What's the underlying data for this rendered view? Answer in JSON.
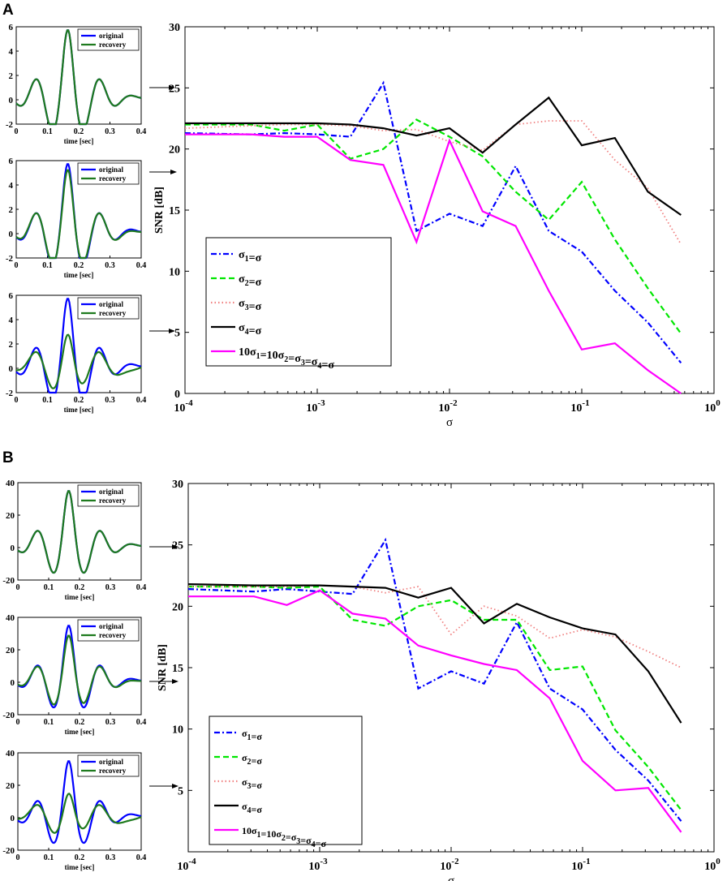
{
  "panels": [
    {
      "label": "A",
      "main": {
        "type": "line",
        "ylabel": "SNR [dB]",
        "xlabel": "σ",
        "ylim": [
          0,
          30
        ],
        "yticks": [
          0,
          5,
          10,
          15,
          20,
          25,
          30
        ],
        "xscale": "log",
        "xlim_exp": [
          -4,
          0
        ],
        "xtick_exps": [
          -4,
          -3,
          -2,
          -1,
          0
        ],
        "legend_loc": "lower-left",
        "x_exp": [
          -4.0,
          -3.5,
          -3.25,
          -3.0,
          -2.75,
          -2.5,
          -2.25,
          -2.0,
          -1.75,
          -1.5,
          -1.25,
          -1.0,
          -0.75,
          -0.5,
          -0.25
        ],
        "series": [
          {
            "name": "σ1=σ",
            "style": "dashdot",
            "color": "#0000ff",
            "values": [
              21.3,
              21.2,
              21.3,
              21.2,
              21.0,
              25.4,
              13.3,
              14.7,
              13.7,
              18.6,
              13.3,
              11.6,
              8.4,
              5.8,
              2.5
            ]
          },
          {
            "name": "σ2=σ",
            "style": "dashed",
            "color": "#00e600",
            "values": [
              22.0,
              22.0,
              21.5,
              22.0,
              19.2,
              20.0,
              22.4,
              21.0,
              19.4,
              16.5,
              14.2,
              17.3,
              12.6,
              8.6,
              4.9
            ]
          },
          {
            "name": "σ3=σ",
            "style": "dotted",
            "color": "#f08080",
            "values": [
              21.7,
              21.9,
              22.0,
              22.0,
              21.9,
              21.5,
              21.6,
              20.6,
              19.9,
              22.0,
              22.3,
              22.3,
              19.1,
              16.8,
              12.2
            ]
          },
          {
            "name": "σ4=σ",
            "style": "solid",
            "color": "#000000",
            "values": [
              22.1,
              22.1,
              22.1,
              22.1,
              22.0,
              21.7,
              21.1,
              21.7,
              19.7,
              22.0,
              24.2,
              20.3,
              20.9,
              16.5,
              14.6
            ]
          },
          {
            "name": "10σ1=10σ2=σ3=σ4=σ",
            "style": "solid",
            "color": "#ff00ff",
            "values": [
              21.2,
              21.2,
              21.0,
              21.0,
              19.1,
              18.7,
              12.4,
              20.7,
              14.9,
              13.7,
              8.4,
              3.6,
              4.1,
              1.9,
              0.0
            ]
          }
        ]
      },
      "insets": [
        {
          "ylim": [
            -2,
            6
          ],
          "yticks": [
            -2,
            0,
            2,
            4,
            6
          ],
          "xlim": [
            0,
            0.4
          ],
          "xticks": [
            "0",
            "0.1",
            "0.2",
            "0.3",
            "0.4"
          ],
          "xlabel": "time [sec]",
          "legend": [
            "original",
            "recovery"
          ],
          "original": {
            "base": 0.3,
            "amp": 5.6
          },
          "recovery": {
            "scale": 1.0,
            "noise": 0.0
          }
        },
        {
          "ylim": [
            -2,
            6
          ],
          "yticks": [
            -2,
            0,
            2,
            4,
            6
          ],
          "xlim": [
            0,
            0.4
          ],
          "xticks": [
            "0",
            "0.1",
            "0.2",
            "0.3",
            "0.4"
          ],
          "xlabel": "time [sec]",
          "legend": [
            "original",
            "recovery"
          ],
          "original": {
            "base": 0.3,
            "amp": 5.6
          },
          "recovery": {
            "scale": 0.93,
            "noise": 0.12
          }
        },
        {
          "ylim": [
            -2,
            6
          ],
          "yticks": [
            -2,
            0,
            2,
            4,
            6
          ],
          "xlim": [
            0,
            0.4
          ],
          "xticks": [
            "0",
            "0.1",
            "0.2",
            "0.3",
            "0.4"
          ],
          "xlabel": "time [sec]",
          "legend": [
            "original",
            "recovery"
          ],
          "original": {
            "base": 0.3,
            "amp": 5.6
          },
          "recovery": {
            "scale": 0.55,
            "noise": 0.45
          }
        }
      ]
    },
    {
      "label": "B",
      "main": {
        "type": "line",
        "ylabel": "SNR [dB]",
        "xlabel": "σ",
        "ylim": [
          0,
          30
        ],
        "yticks": [
          5,
          10,
          15,
          20,
          25,
          30
        ],
        "xscale": "log",
        "xlim_exp": [
          -4,
          0
        ],
        "xtick_exps": [
          -4,
          -3,
          -2,
          -1,
          0
        ],
        "legend_loc": "lower-left",
        "x_exp": [
          -4.0,
          -3.5,
          -3.25,
          -3.0,
          -2.75,
          -2.5,
          -2.25,
          -2.0,
          -1.75,
          -1.5,
          -1.25,
          -1.0,
          -0.75,
          -0.5,
          -0.25
        ],
        "series": [
          {
            "name": "σ1=σ",
            "style": "dashdot",
            "color": "#0000ff",
            "values": [
              21.4,
              21.2,
              21.4,
              21.2,
              21.0,
              25.4,
              13.3,
              14.7,
              13.7,
              18.7,
              13.3,
              11.6,
              8.3,
              5.8,
              2.5
            ]
          },
          {
            "name": "σ2=σ",
            "style": "dashed",
            "color": "#00e600",
            "values": [
              21.6,
              21.6,
              21.5,
              21.6,
              18.9,
              18.4,
              20.0,
              20.5,
              18.9,
              18.9,
              14.8,
              15.1,
              9.9,
              6.9,
              3.4
            ]
          },
          {
            "name": "σ3=σ",
            "style": "dotted",
            "color": "#f08080",
            "values": [
              21.6,
              21.6,
              21.6,
              21.7,
              21.6,
              21.1,
              21.6,
              17.7,
              20.0,
              19.2,
              17.4,
              18.1,
              17.5,
              16.3,
              15.0
            ]
          },
          {
            "name": "σ4=σ",
            "style": "solid",
            "color": "#000000",
            "values": [
              21.8,
              21.7,
              21.7,
              21.7,
              21.6,
              21.5,
              20.7,
              21.5,
              18.6,
              20.2,
              19.1,
              18.2,
              17.7,
              14.7,
              10.5
            ]
          },
          {
            "name": "10σ1=10σ2=σ3=σ4=σ",
            "style": "solid",
            "color": "#ff00ff",
            "values": [
              20.8,
              20.8,
              20.1,
              21.3,
              19.4,
              19.0,
              16.8,
              16.0,
              15.3,
              14.8,
              12.5,
              7.4,
              5.0,
              5.2,
              1.6
            ]
          }
        ]
      },
      "insets": [
        {
          "ylim": [
            -20,
            40
          ],
          "yticks": [
            -20,
            0,
            20,
            40
          ],
          "xlim": [
            0,
            0.4
          ],
          "xticks": [
            "0",
            "0.1",
            "0.2",
            "0.3",
            "0.4"
          ],
          "xlabel": "time [sec]",
          "legend": [
            "original",
            "recovery"
          ],
          "original": {
            "base": 2.0,
            "amp": 34.0
          },
          "recovery": {
            "scale": 1.0,
            "noise": 0.0
          }
        },
        {
          "ylim": [
            -20,
            40
          ],
          "yticks": [
            -20,
            0,
            20,
            40
          ],
          "xlim": [
            0,
            0.4
          ],
          "xticks": [
            "0",
            "0.1",
            "0.2",
            "0.3",
            "0.4"
          ],
          "xlabel": "time [sec]",
          "legend": [
            "original",
            "recovery"
          ],
          "original": {
            "base": 2.0,
            "amp": 34.0
          },
          "recovery": {
            "scale": 0.85,
            "noise": 1.0
          }
        },
        {
          "ylim": [
            -20,
            40
          ],
          "yticks": [
            -20,
            0,
            20,
            40
          ],
          "xlim": [
            0,
            0.4
          ],
          "xticks": [
            "0",
            "0.1",
            "0.2",
            "0.3",
            "0.4"
          ],
          "xlabel": "time [sec]",
          "legend": [
            "original",
            "recovery"
          ],
          "original": {
            "base": 2.0,
            "amp": 34.0
          },
          "recovery": {
            "scale": 0.5,
            "noise": 3.0
          }
        }
      ]
    }
  ],
  "chart_data": [
    {
      "type": "line",
      "title": "A",
      "xlabel": "σ",
      "ylabel": "SNR [dB]",
      "ylim": [
        0,
        30
      ],
      "x": [
        "1e-4",
        "3.2e-4",
        "5.6e-4",
        "1e-3",
        "1.8e-3",
        "3.2e-3",
        "5.6e-3",
        "1e-2",
        "1.8e-2",
        "3.2e-2",
        "5.6e-2",
        "1e-1",
        "1.8e-1",
        "3.2e-1",
        "5.6e-1"
      ],
      "series_ref": "panels.0.main.series"
    },
    {
      "type": "line",
      "title": "B",
      "xlabel": "σ",
      "ylabel": "SNR [dB]",
      "ylim": [
        0,
        30
      ],
      "x": [
        "1e-4",
        "3.2e-4",
        "5.6e-4",
        "1e-3",
        "1.8e-3",
        "3.2e-3",
        "5.6e-3",
        "1e-2",
        "1.8e-2",
        "3.2e-2",
        "5.6e-2",
        "1e-1",
        "1.8e-1",
        "3.2e-1",
        "5.6e-1"
      ],
      "series_ref": "panels.1.main.series"
    }
  ]
}
